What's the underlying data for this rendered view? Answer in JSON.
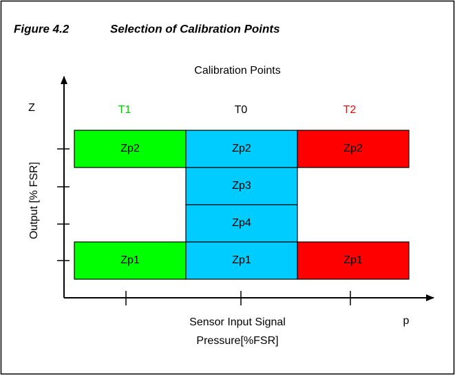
{
  "figure": {
    "number": "Figure 4.2",
    "title": "Selection of Calibration Points"
  },
  "diagram": {
    "title": "Calibration Points",
    "y_axis_symbol": "Z",
    "y_axis_label": "Output [% FSR]",
    "x_axis_symbol": "p",
    "x_axis_label": [
      "Sensor Input Signal",
      "Pressure[%FSR]"
    ],
    "columns": [
      {
        "label": "T1",
        "label_color": "#00cc00",
        "color": "#00ff00",
        "cells": [
          "Zp2",
          "Zp1"
        ]
      },
      {
        "label": "T0",
        "label_color": "#000000",
        "color": "#00ccff",
        "cells": [
          "Zp2",
          "Zp3",
          "Zp4",
          "Zp1"
        ]
      },
      {
        "label": "T2",
        "label_color": "#ff0000",
        "color": "#ff0000",
        "cells": [
          "Zp2",
          "Zp1"
        ]
      }
    ]
  }
}
